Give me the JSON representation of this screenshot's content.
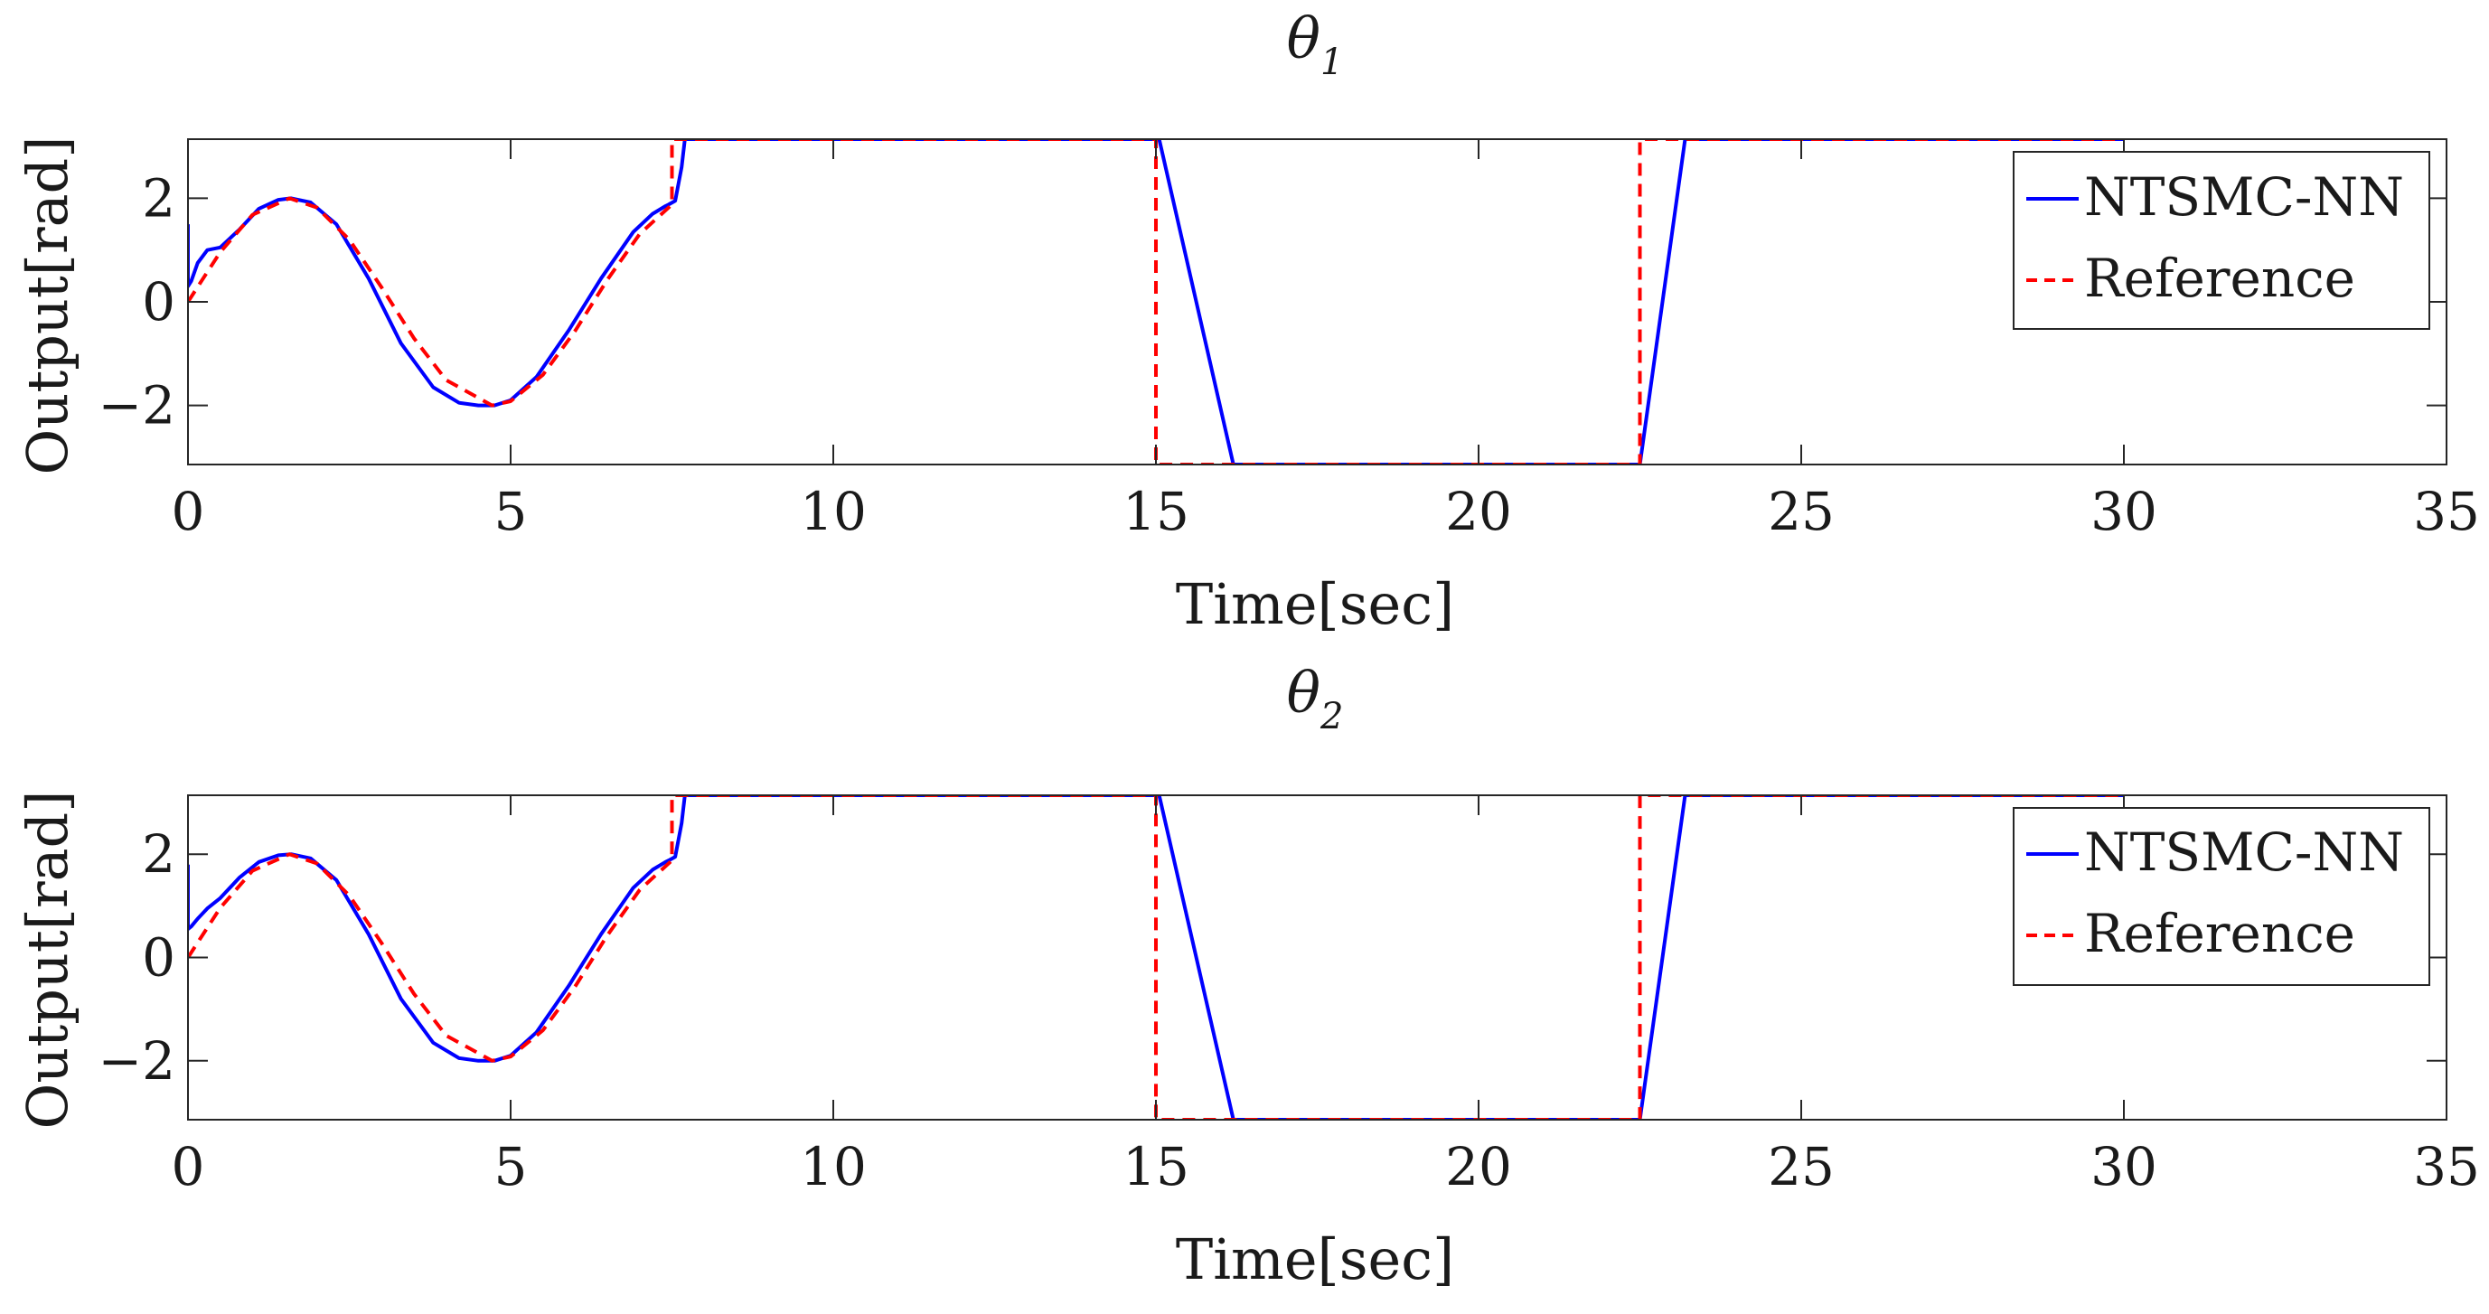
{
  "colors": {
    "ntsmc": "#0000ff",
    "reference": "#ff0000",
    "axis": "#262626"
  },
  "chart_data": [
    {
      "type": "line",
      "title": "θ",
      "title_sub": "1",
      "xlabel": "Time[sec]",
      "ylabel": "Output[rad]",
      "xlim": [
        0,
        35
      ],
      "ylim": [
        -3.1416,
        3.1416
      ],
      "xticks": [
        0,
        5,
        10,
        15,
        20,
        25,
        30,
        35
      ],
      "yticks": [
        -2,
        0,
        2
      ],
      "grid": false,
      "legend": "top-right",
      "series": [
        {
          "name": "NTSMC-NN",
          "style": "solid",
          "x": [
            0,
            0.0001,
            0.05,
            0.15,
            0.3,
            0.5,
            0.8,
            1.1,
            1.4,
            1.6,
            1.9,
            2.3,
            2.8,
            3.3,
            3.8,
            4.2,
            4.5,
            4.75,
            5.0,
            5.4,
            5.9,
            6.4,
            6.9,
            7.2,
            7.4,
            7.45,
            7.55,
            7.65,
            7.7,
            7.85,
            8.0,
            10,
            12.5,
            15.0,
            15.05,
            16.2,
            16.3,
            20,
            22.5,
            23.2,
            23.3,
            26,
            30
          ],
          "y": [
            1.5,
            0.3,
            0.4,
            0.75,
            1.0,
            1.05,
            1.4,
            1.8,
            1.97,
            2.0,
            1.92,
            1.5,
            0.45,
            -0.8,
            -1.65,
            -1.95,
            -2.0,
            -2.0,
            -1.9,
            -1.45,
            -0.55,
            0.45,
            1.35,
            1.7,
            1.85,
            1.88,
            1.95,
            2.6,
            3.1416,
            3.1416,
            3.1416,
            3.1416,
            3.1416,
            3.1416,
            3.1416,
            -3.1416,
            -3.1416,
            -3.1416,
            -3.1416,
            3.1416,
            3.1416,
            3.1416,
            3.1416
          ]
        },
        {
          "name": "Reference",
          "style": "dashed",
          "x": [
            0,
            0.5,
            1.0,
            1.571,
            2.0,
            2.5,
            3.0,
            3.5,
            4.0,
            4.712,
            5.0,
            5.5,
            6.0,
            6.5,
            7.0,
            7.5,
            7.5,
            10,
            15,
            15,
            20,
            22.5,
            22.5,
            26,
            30
          ],
          "y": [
            0.0,
            0.96,
            1.68,
            2.0,
            1.82,
            1.2,
            0.28,
            -0.7,
            -1.51,
            -2.0,
            -1.92,
            -1.41,
            -0.56,
            0.43,
            1.31,
            1.88,
            3.1416,
            3.1416,
            3.1416,
            -3.1416,
            -3.1416,
            -3.1416,
            3.1416,
            3.1416,
            3.1416
          ]
        }
      ]
    },
    {
      "type": "line",
      "title": "θ",
      "title_sub": "2",
      "xlabel": "Time[sec]",
      "ylabel": "Output[rad]",
      "xlim": [
        0,
        35
      ],
      "ylim": [
        -3.1416,
        3.1416
      ],
      "xticks": [
        0,
        5,
        10,
        15,
        20,
        25,
        30,
        35
      ],
      "yticks": [
        -2,
        0,
        2
      ],
      "grid": false,
      "legend": "top-right",
      "series": [
        {
          "name": "NTSMC-NN",
          "style": "solid",
          "x": [
            0,
            0.0001,
            0.05,
            0.15,
            0.3,
            0.5,
            0.8,
            1.1,
            1.4,
            1.6,
            1.9,
            2.3,
            2.8,
            3.3,
            3.8,
            4.2,
            4.5,
            4.75,
            5.0,
            5.4,
            5.9,
            6.4,
            6.9,
            7.2,
            7.4,
            7.45,
            7.55,
            7.65,
            7.7,
            7.85,
            8.0,
            10,
            12.5,
            15.0,
            15.05,
            16.2,
            16.3,
            20,
            22.5,
            23.2,
            23.3,
            26,
            30
          ],
          "y": [
            1.8,
            0.55,
            0.6,
            0.75,
            0.95,
            1.15,
            1.55,
            1.85,
            1.98,
            2.0,
            1.92,
            1.5,
            0.45,
            -0.8,
            -1.65,
            -1.95,
            -2.0,
            -2.0,
            -1.9,
            -1.45,
            -0.55,
            0.45,
            1.35,
            1.7,
            1.85,
            1.88,
            1.95,
            2.6,
            3.1416,
            3.1416,
            3.1416,
            3.1416,
            3.1416,
            3.1416,
            3.1416,
            -3.1416,
            -3.1416,
            -3.1416,
            -3.1416,
            3.1416,
            3.1416,
            3.1416,
            3.1416
          ]
        },
        {
          "name": "Reference",
          "style": "dashed",
          "x": [
            0,
            0.5,
            1.0,
            1.571,
            2.0,
            2.5,
            3.0,
            3.5,
            4.0,
            4.712,
            5.0,
            5.5,
            6.0,
            6.5,
            7.0,
            7.5,
            7.5,
            10,
            15,
            15,
            20,
            22.5,
            22.5,
            26,
            30
          ],
          "y": [
            0.0,
            0.96,
            1.68,
            2.0,
            1.82,
            1.2,
            0.28,
            -0.7,
            -1.51,
            -2.0,
            -1.92,
            -1.41,
            -0.56,
            0.43,
            1.31,
            1.88,
            3.1416,
            3.1416,
            3.1416,
            -3.1416,
            -3.1416,
            -3.1416,
            3.1416,
            3.1416,
            3.1416
          ]
        }
      ]
    }
  ]
}
